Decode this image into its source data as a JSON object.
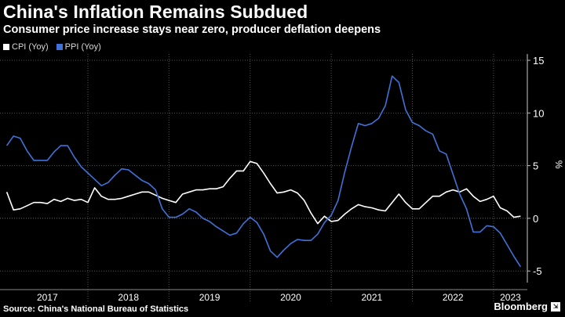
{
  "chart_data": {
    "type": "line",
    "title": "China's Inflation Remains Subdued",
    "subtitle": "Consumer price increase stays near zero, producer deflation deepens",
    "ylabel": "%",
    "ylim": [
      -5.8,
      15.3
    ],
    "yticks": [
      15,
      10,
      5,
      0,
      -5
    ],
    "x_start": "2016-12",
    "x_end": "2023-06",
    "year_labels": [
      "2017",
      "2018",
      "2019",
      "2020",
      "2021",
      "2022",
      "2023"
    ],
    "grid": true,
    "legend_position": "top-left",
    "series": [
      {
        "name": "CPI (Yoy)",
        "color": "#ffffff",
        "start": "2017-01",
        "values": [
          2.5,
          0.8,
          0.9,
          1.2,
          1.5,
          1.5,
          1.4,
          1.8,
          1.6,
          1.9,
          1.7,
          1.8,
          1.5,
          2.9,
          2.1,
          1.8,
          1.8,
          1.9,
          2.1,
          2.3,
          2.5,
          2.5,
          2.2,
          1.9,
          1.7,
          1.5,
          2.3,
          2.5,
          2.7,
          2.7,
          2.8,
          2.8,
          3.0,
          3.8,
          4.5,
          4.5,
          5.4,
          5.2,
          4.3,
          3.3,
          2.4,
          2.5,
          2.7,
          2.4,
          1.7,
          0.5,
          -0.5,
          0.2,
          -0.3,
          -0.2,
          0.4,
          0.9,
          1.3,
          1.1,
          1.0,
          0.8,
          0.7,
          1.5,
          2.3,
          1.5,
          0.9,
          0.9,
          1.5,
          2.1,
          2.1,
          2.5,
          2.7,
          2.5,
          2.8,
          2.1,
          1.6,
          1.8,
          2.1,
          1.0,
          0.7,
          0.1,
          0.2
        ],
        "last_label": "Jun 2023"
      },
      {
        "name": "PPI (Yoy)",
        "color": "#3f73d8",
        "start": "2017-01",
        "values": [
          6.9,
          7.8,
          7.6,
          6.4,
          5.5,
          5.5,
          5.5,
          6.3,
          6.9,
          6.9,
          5.8,
          4.9,
          4.3,
          3.7,
          3.1,
          3.4,
          4.1,
          4.7,
          4.6,
          4.1,
          3.6,
          3.3,
          2.7,
          0.9,
          0.1,
          0.1,
          0.4,
          0.9,
          0.6,
          0.0,
          -0.3,
          -0.8,
          -1.2,
          -1.6,
          -1.4,
          -0.5,
          0.1,
          -0.4,
          -1.5,
          -3.1,
          -3.7,
          -3.0,
          -2.4,
          -2.0,
          -2.1,
          -2.1,
          -1.5,
          -0.4,
          0.3,
          1.7,
          4.4,
          6.8,
          9.0,
          8.8,
          9.0,
          9.5,
          10.7,
          13.5,
          12.9,
          10.3,
          9.1,
          8.8,
          8.3,
          8.0,
          6.4,
          6.1,
          4.2,
          2.3,
          0.9,
          -1.3,
          -1.3,
          -0.7,
          -0.8,
          -1.4,
          -2.5,
          -3.6,
          -4.6
        ],
        "last_label": "Jun 2023"
      }
    ]
  },
  "source_text": "Source: China's National Bureau of Statistics",
  "brand": "Bloomberg"
}
